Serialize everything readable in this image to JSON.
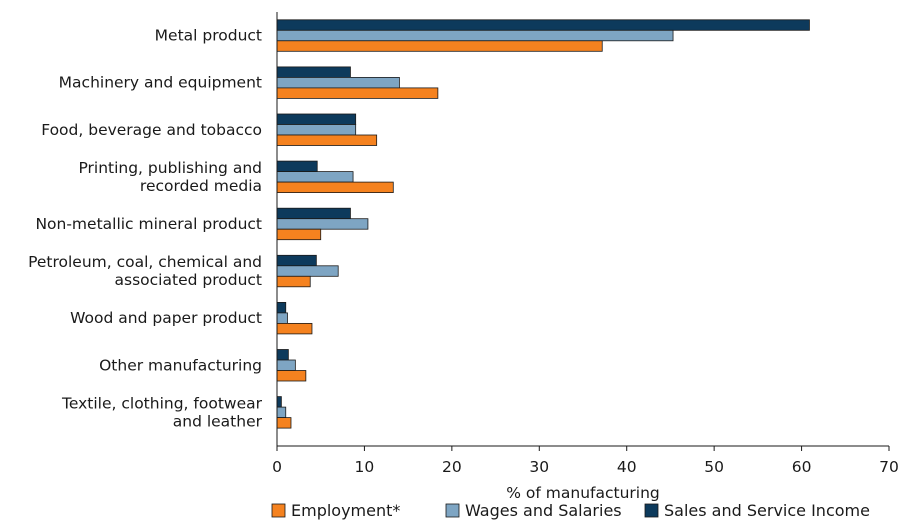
{
  "chart_data": {
    "type": "bar",
    "orientation": "horizontal",
    "title": "",
    "xlabel": "% of manufacturing",
    "ylabel": "",
    "xlim": [
      0,
      70
    ],
    "x_ticks": [
      0,
      10,
      20,
      30,
      40,
      50,
      60,
      70
    ],
    "grid": false,
    "legend_position": "bottom",
    "categories": [
      [
        "Metal product"
      ],
      [
        "Machinery and equipment"
      ],
      [
        "Food, beverage and tobacco"
      ],
      [
        "Printing, publishing and",
        "recorded media"
      ],
      [
        "Non-metallic mineral product"
      ],
      [
        "Petroleum, coal, chemical and",
        "associated product"
      ],
      [
        "Wood and paper product"
      ],
      [
        "Other manufacturing"
      ],
      [
        "Textile, clothing, footwear",
        "and leather"
      ]
    ],
    "series": [
      {
        "name": "Employment*",
        "color": "#f5821f",
        "values": [
          37.2,
          18.4,
          11.4,
          13.3,
          5.0,
          3.8,
          4.0,
          3.3,
          1.6
        ]
      },
      {
        "name": "Wages and Salaries",
        "color": "#7ea5c3",
        "values": [
          45.3,
          14.0,
          9.0,
          8.7,
          10.4,
          7.0,
          1.2,
          2.1,
          1.0
        ]
      },
      {
        "name": "Sales and Service Income",
        "color": "#0d3a5c",
        "values": [
          60.9,
          8.4,
          9.0,
          4.6,
          8.4,
          4.5,
          1.0,
          1.3,
          0.5
        ]
      }
    ]
  }
}
